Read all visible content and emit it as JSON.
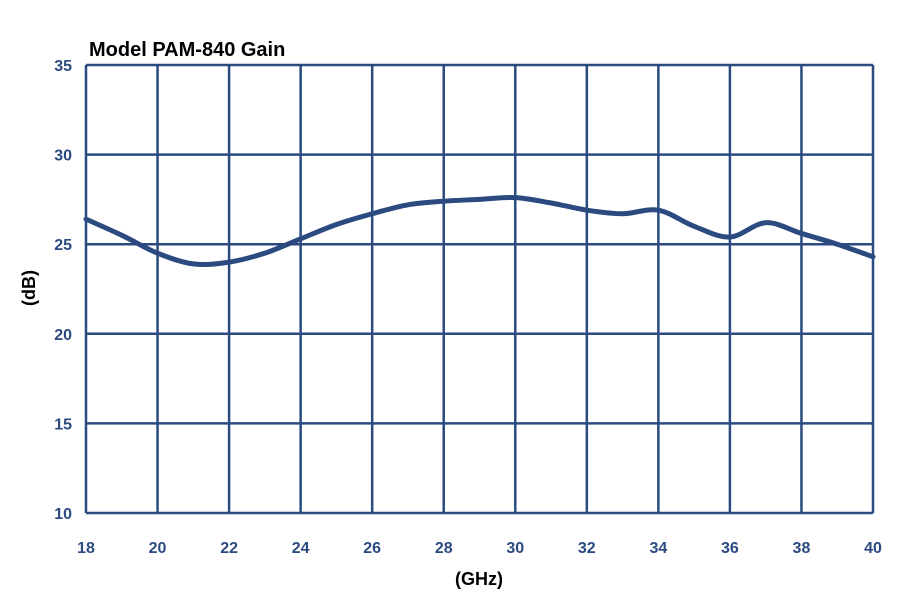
{
  "chart_data": {
    "type": "line",
    "title": "Model PAM-840 Gain",
    "xlabel": "(GHz)",
    "ylabel": "(dB)",
    "xlim": [
      18,
      40
    ],
    "ylim": [
      10,
      35
    ],
    "xticks": [
      18,
      20,
      22,
      24,
      26,
      28,
      30,
      32,
      34,
      36,
      38,
      40
    ],
    "yticks": [
      10,
      15,
      20,
      25,
      30,
      35
    ],
    "grid": true,
    "colors": {
      "line": "#2B4A80",
      "grid": "#2B4A80",
      "tick_label": "#2B4A80",
      "title": "#000000"
    },
    "series": [
      {
        "x": [
          18,
          19,
          20,
          21,
          22,
          23,
          24,
          25,
          26,
          27,
          28,
          29,
          30,
          31,
          32,
          33,
          34,
          35,
          36,
          37,
          38,
          39,
          40
        ],
        "values": [
          26.4,
          25.5,
          24.5,
          23.9,
          24.0,
          24.5,
          25.3,
          26.1,
          26.7,
          27.2,
          27.4,
          27.5,
          27.6,
          27.3,
          26.9,
          26.7,
          26.9,
          26.0,
          25.4,
          26.2,
          25.6,
          25.0,
          24.3
        ]
      }
    ]
  }
}
